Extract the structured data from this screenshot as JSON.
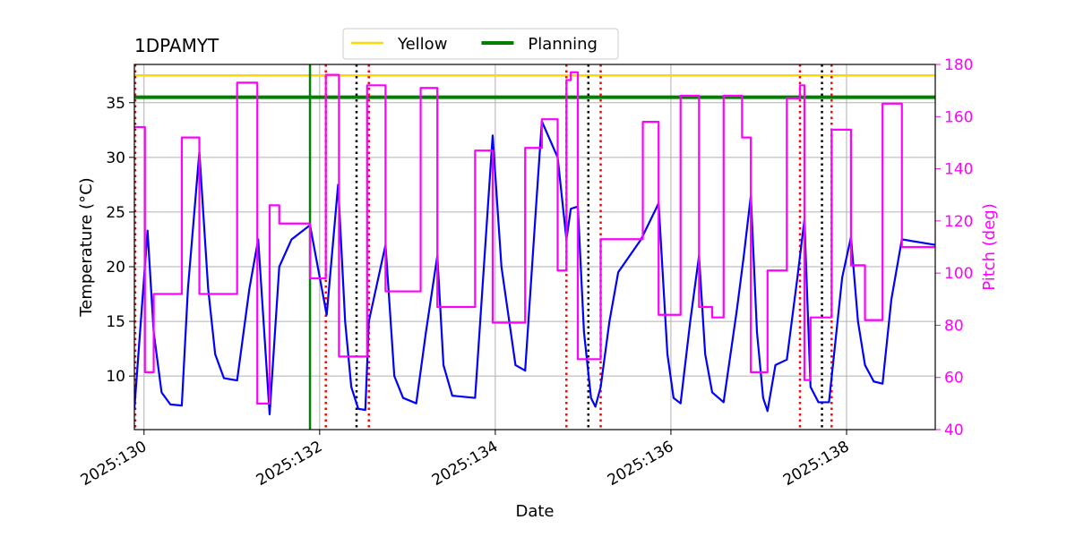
{
  "chart_data": {
    "type": "line",
    "title": "1DPAMYT",
    "xlabel": "Date",
    "ylabel": "Temperature (°C)",
    "y2label": "Pitch (deg)",
    "y2color": "#ff00ff",
    "xlim": [
      129.89,
      139.01
    ],
    "xticks": [
      {
        "value": 130,
        "label": "2025:130"
      },
      {
        "value": 132,
        "label": "2025:132"
      },
      {
        "value": 134,
        "label": "2025:134"
      },
      {
        "value": 136,
        "label": "2025:136"
      },
      {
        "value": 138,
        "label": "2025:138"
      }
    ],
    "ylim": [
      5.1,
      38.5
    ],
    "yticks": [
      10,
      15,
      20,
      25,
      30,
      35
    ],
    "y2lim": [
      40,
      180
    ],
    "y2ticks": [
      40,
      60,
      80,
      100,
      120,
      140,
      160,
      180
    ],
    "grid": true,
    "legend": "upper center",
    "hlines": [
      {
        "name": "Yellow",
        "value": 37.5,
        "color": "#ffd700"
      },
      {
        "name": "Planning",
        "value": 35.5,
        "color": "#008000"
      }
    ],
    "vlines": [
      {
        "x": 131.89,
        "color": "#008000",
        "style": "solid"
      },
      {
        "x": 129.9,
        "color": "#ff0000",
        "style": "dotted"
      },
      {
        "x": 132.07,
        "color": "#ff0000",
        "style": "dotted"
      },
      {
        "x": 132.56,
        "color": "#ff0000",
        "style": "dotted"
      },
      {
        "x": 134.81,
        "color": "#ff0000",
        "style": "dotted"
      },
      {
        "x": 135.2,
        "color": "#ff0000",
        "style": "dotted"
      },
      {
        "x": 137.47,
        "color": "#ff0000",
        "style": "dotted"
      },
      {
        "x": 137.83,
        "color": "#ff0000",
        "style": "dotted"
      },
      {
        "x": 132.42,
        "color": "#000000",
        "style": "dotted"
      },
      {
        "x": 135.06,
        "color": "#000000",
        "style": "dotted"
      },
      {
        "x": 137.72,
        "color": "#000000",
        "style": "dotted"
      }
    ],
    "series": [
      {
        "color": "#0000ff",
        "axis": "y",
        "x": [
          129.89,
          130.04,
          130.11,
          130.2,
          130.3,
          130.43,
          130.5,
          130.63,
          130.73,
          130.81,
          130.91,
          131.06,
          131.2,
          131.3,
          131.43,
          131.54,
          131.68,
          131.89,
          132.08,
          132.21,
          132.29,
          132.36,
          132.44,
          132.52,
          132.56,
          132.75,
          132.85,
          132.95,
          133.1,
          133.21,
          133.34,
          133.41,
          133.51,
          133.77,
          133.87,
          133.97,
          134.07,
          134.23,
          134.34,
          134.46,
          134.53,
          134.71,
          134.81,
          134.86,
          134.94,
          135.01,
          135.09,
          135.14,
          135.2,
          135.3,
          135.4,
          135.66,
          135.86,
          135.96,
          136.03,
          136.11,
          136.22,
          136.32,
          136.39,
          136.47,
          136.6,
          136.75,
          136.83,
          136.91,
          136.98,
          137.05,
          137.1,
          137.19,
          137.32,
          137.44,
          137.52,
          137.59,
          137.68,
          137.8,
          137.95,
          138.05,
          138.13,
          138.21,
          138.31,
          138.41,
          138.51,
          138.63,
          139.01
        ],
        "values": [
          7,
          23.3,
          14,
          8.5,
          7.4,
          7.3,
          18,
          30.5,
          18,
          12,
          9.8,
          9.6,
          18,
          22.5,
          6.5,
          20,
          22.5,
          23.8,
          15.6,
          27.5,
          15,
          9,
          7,
          6.9,
          15,
          22,
          10,
          8,
          7.5,
          14,
          21,
          11,
          8.2,
          8,
          20,
          32,
          20,
          11,
          10.5,
          25,
          33.3,
          30,
          22.5,
          25.3,
          25.5,
          14,
          8,
          7.2,
          9,
          15,
          19.5,
          22.5,
          25.8,
          12,
          8,
          7.5,
          15,
          21,
          12,
          8.5,
          7.6,
          16,
          21,
          26.5,
          14,
          8,
          6.8,
          11,
          11.5,
          19,
          24.3,
          9,
          7.6,
          7.6,
          19,
          22.7,
          15,
          11,
          9.5,
          9.3,
          17,
          22.5,
          22
        ]
      },
      {
        "color": "#ff00ff",
        "axis": "y2",
        "step": "post",
        "x": [
          129.89,
          130.01,
          130.11,
          130.43,
          130.63,
          131.06,
          131.29,
          131.43,
          131.54,
          131.89,
          132.07,
          132.22,
          132.54,
          132.75,
          133.15,
          133.34,
          133.77,
          133.97,
          134.34,
          134.53,
          134.71,
          134.81,
          134.86,
          134.94,
          135.2,
          135.68,
          135.86,
          136.11,
          136.32,
          136.47,
          136.6,
          136.81,
          136.91,
          137.1,
          137.32,
          137.47,
          137.52,
          137.59,
          137.83,
          138.05,
          138.21,
          138.41,
          138.63,
          139.01
        ],
        "values": [
          156,
          62,
          92,
          152,
          92,
          173,
          50,
          126,
          119,
          98,
          176,
          68,
          172,
          93,
          171,
          87,
          147,
          81,
          148,
          159,
          101,
          174,
          177,
          67,
          113,
          158,
          84,
          168,
          87,
          83,
          168,
          152,
          62,
          101,
          167,
          172,
          59,
          83,
          155,
          103,
          82,
          165,
          110,
          110
        ]
      }
    ]
  }
}
